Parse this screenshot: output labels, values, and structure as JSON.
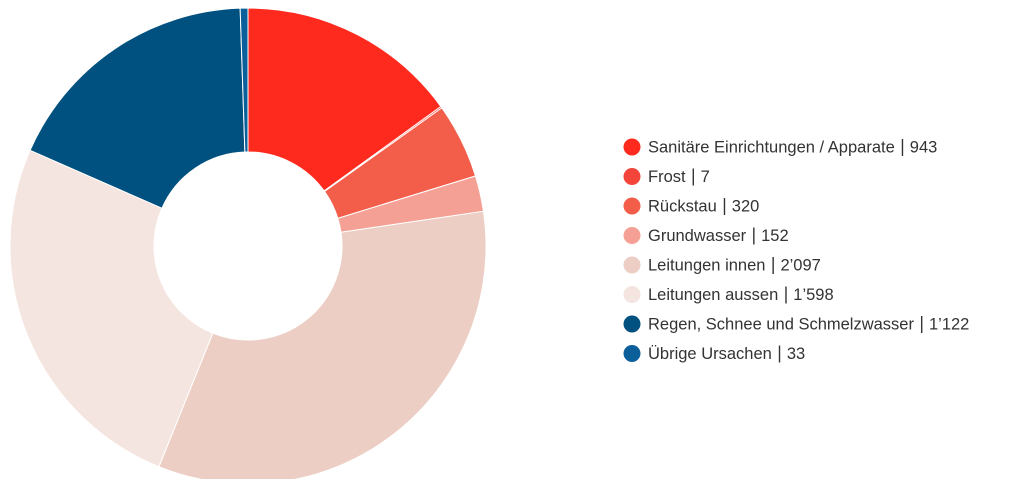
{
  "chart_data": {
    "type": "donut",
    "categories": [
      "Sanitäre Einrichtungen / Apparate",
      "Frost",
      "Rückstau",
      "Grundwasser",
      "Leitungen innen",
      "Leitungen aussen",
      "Regen, Schnee und Schmelzwasser",
      "Übrige Ursachen"
    ],
    "values": [
      943,
      7,
      320,
      152,
      2097,
      1598,
      1122,
      33
    ],
    "value_labels": [
      "943",
      "7",
      "320",
      "152",
      "2’097",
      "1’598",
      "1’122",
      "33"
    ],
    "colors": [
      "#fe2a1e",
      "#f4453b",
      "#f35e4b",
      "#f4a095",
      "#eccec4",
      "#f5e5e0",
      "#00517f",
      "#0b609c"
    ],
    "legend": "right"
  }
}
